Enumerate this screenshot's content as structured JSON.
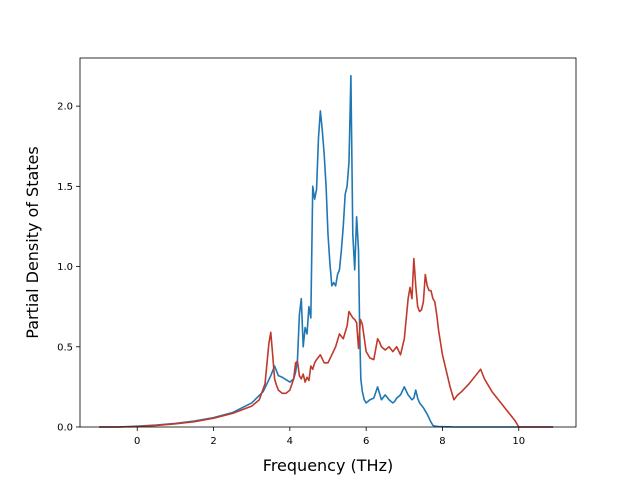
{
  "chart_data": {
    "type": "line",
    "xlabel": "Frequency (THz)",
    "ylabel": "Partial Density of States",
    "xlim": [
      -1.5,
      11.5
    ],
    "ylim": [
      0.0,
      2.3
    ],
    "xticks": [
      0,
      2,
      4,
      6,
      8,
      10
    ],
    "yticks": [
      0.0,
      0.5,
      1.0,
      1.5,
      2.0
    ],
    "xtick_labels": [
      "0",
      "2",
      "4",
      "6",
      "8",
      "10"
    ],
    "ytick_labels": [
      "0.0",
      "0.5",
      "1.0",
      "1.5",
      "2.0"
    ],
    "grid": false,
    "series": [
      {
        "color": "#1f77b4",
        "x": [
          -1.0,
          -0.5,
          0.0,
          0.5,
          1.0,
          1.5,
          2.0,
          2.5,
          3.0,
          3.3,
          3.5,
          3.6,
          3.7,
          3.8,
          4.0,
          4.1,
          4.15,
          4.2,
          4.25,
          4.3,
          4.35,
          4.4,
          4.45,
          4.5,
          4.55,
          4.6,
          4.65,
          4.7,
          4.75,
          4.8,
          4.85,
          4.9,
          4.95,
          5.0,
          5.05,
          5.1,
          5.15,
          5.2,
          5.25,
          5.3,
          5.35,
          5.4,
          5.45,
          5.5,
          5.55,
          5.6,
          5.65,
          5.7,
          5.75,
          5.8,
          5.83,
          5.86,
          5.9,
          5.95,
          6.0,
          6.05,
          6.1,
          6.2,
          6.3,
          6.4,
          6.5,
          6.6,
          6.7,
          6.75,
          6.8,
          6.9,
          7.0,
          7.1,
          7.2,
          7.25,
          7.3,
          7.35,
          7.4,
          7.5,
          7.6,
          7.7,
          7.75,
          7.8,
          7.9,
          8.0,
          8.1,
          8.2,
          8.3,
          8.5,
          9.0,
          9.5,
          10.0,
          10.5,
          10.9
        ],
        "y": [
          0.0,
          0.0,
          0.005,
          0.012,
          0.022,
          0.037,
          0.058,
          0.09,
          0.15,
          0.22,
          0.32,
          0.38,
          0.32,
          0.31,
          0.28,
          0.3,
          0.34,
          0.42,
          0.7,
          0.8,
          0.5,
          0.62,
          0.58,
          0.75,
          0.68,
          1.5,
          1.42,
          1.48,
          1.8,
          1.97,
          1.85,
          1.7,
          1.5,
          1.2,
          1.02,
          0.88,
          0.9,
          0.88,
          0.95,
          0.98,
          1.1,
          1.25,
          1.45,
          1.5,
          1.65,
          2.19,
          1.2,
          0.98,
          1.31,
          1.1,
          0.6,
          0.3,
          0.22,
          0.17,
          0.15,
          0.16,
          0.17,
          0.18,
          0.25,
          0.17,
          0.2,
          0.17,
          0.15,
          0.16,
          0.18,
          0.2,
          0.25,
          0.2,
          0.17,
          0.18,
          0.23,
          0.18,
          0.15,
          0.12,
          0.08,
          0.03,
          0.01,
          0.005,
          0.003,
          0.002,
          0.001,
          0.001,
          0.0,
          0.0,
          0.0,
          0.0,
          0.0,
          0.0,
          0.0
        ]
      },
      {
        "color": "#c0392b",
        "x": [
          -1.0,
          -0.5,
          0.0,
          0.5,
          1.0,
          1.5,
          2.0,
          2.5,
          3.0,
          3.2,
          3.35,
          3.45,
          3.5,
          3.55,
          3.6,
          3.65,
          3.7,
          3.8,
          3.9,
          4.0,
          4.1,
          4.15,
          4.2,
          4.25,
          4.3,
          4.35,
          4.4,
          4.45,
          4.5,
          4.55,
          4.6,
          4.65,
          4.7,
          4.8,
          4.9,
          5.0,
          5.1,
          5.2,
          5.3,
          5.4,
          5.5,
          5.55,
          5.6,
          5.65,
          5.7,
          5.75,
          5.8,
          5.85,
          5.9,
          6.0,
          6.1,
          6.2,
          6.3,
          6.35,
          6.4,
          6.5,
          6.6,
          6.7,
          6.8,
          6.9,
          7.0,
          7.1,
          7.15,
          7.2,
          7.25,
          7.3,
          7.35,
          7.4,
          7.45,
          7.5,
          7.55,
          7.6,
          7.65,
          7.7,
          7.75,
          7.8,
          7.85,
          7.9,
          8.0,
          8.1,
          8.2,
          8.3,
          8.4,
          8.5,
          8.7,
          8.9,
          9.0,
          9.1,
          9.3,
          9.5,
          9.7,
          9.8,
          9.9,
          10.0,
          10.1,
          10.5,
          10.9
        ],
        "y": [
          0.0,
          0.0,
          0.003,
          0.01,
          0.02,
          0.033,
          0.055,
          0.085,
          0.13,
          0.17,
          0.27,
          0.52,
          0.59,
          0.45,
          0.3,
          0.26,
          0.23,
          0.21,
          0.21,
          0.23,
          0.3,
          0.4,
          0.41,
          0.32,
          0.3,
          0.33,
          0.28,
          0.31,
          0.29,
          0.38,
          0.36,
          0.4,
          0.42,
          0.45,
          0.4,
          0.4,
          0.45,
          0.5,
          0.58,
          0.55,
          0.63,
          0.72,
          0.7,
          0.68,
          0.67,
          0.65,
          0.49,
          0.67,
          0.64,
          0.47,
          0.43,
          0.42,
          0.55,
          0.53,
          0.5,
          0.48,
          0.5,
          0.47,
          0.5,
          0.45,
          0.55,
          0.8,
          0.87,
          0.8,
          1.05,
          0.88,
          0.75,
          0.72,
          0.73,
          0.78,
          0.95,
          0.88,
          0.85,
          0.85,
          0.8,
          0.78,
          0.7,
          0.6,
          0.45,
          0.35,
          0.25,
          0.17,
          0.2,
          0.22,
          0.27,
          0.33,
          0.36,
          0.3,
          0.22,
          0.16,
          0.1,
          0.07,
          0.04,
          0.0,
          0.0,
          0.0,
          0.0
        ]
      }
    ]
  }
}
